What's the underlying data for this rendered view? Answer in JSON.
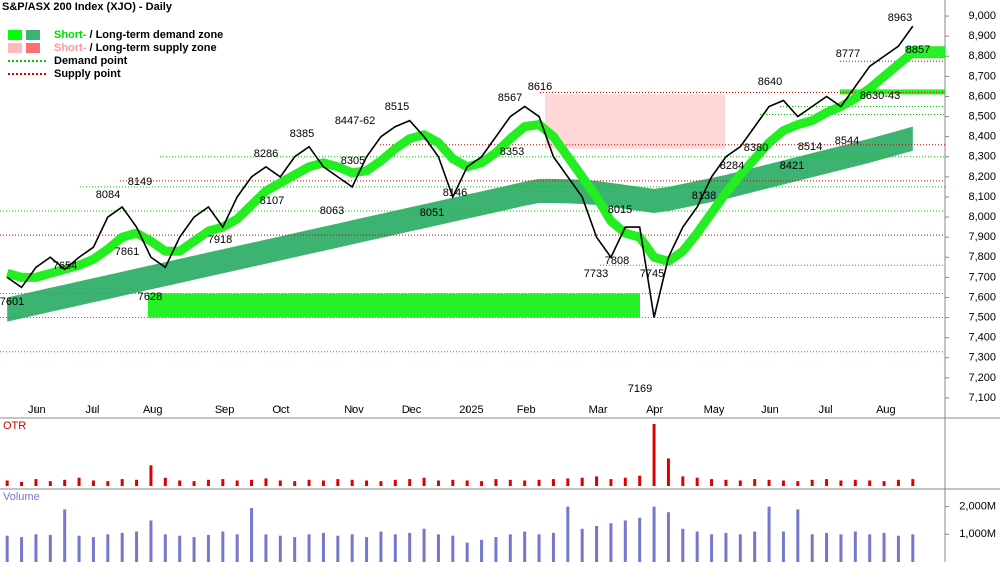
{
  "chart_data": [
    {
      "type": "line",
      "title": "S&P/ASX 200 Index (XJO) - Daily",
      "legend": [
        {
          "parts": [
            "Short-",
            " / ",
            "Long-term demand zone"
          ]
        },
        {
          "parts": [
            "Short-",
            " / ",
            "Long-term supply zone"
          ]
        },
        {
          "parts": [
            "Demand point"
          ]
        },
        {
          "parts": [
            "Supply point"
          ]
        }
      ],
      "categories": [
        null,
        null,
        "Jun",
        null,
        null,
        null,
        "Jul",
        null,
        null,
        null,
        "Aug",
        null,
        null,
        null,
        null,
        "Sep",
        null,
        null,
        null,
        "Oct",
        null,
        null,
        null,
        null,
        "Nov",
        null,
        null,
        null,
        "Dec",
        null,
        null,
        null,
        "2025",
        null,
        null,
        null,
        "Feb",
        null,
        null,
        null,
        null,
        "Mar",
        null,
        null,
        null,
        "Apr",
        null,
        null,
        null,
        "May",
        null,
        null,
        null,
        "Jun",
        null,
        null,
        null,
        "Jul",
        null,
        null,
        null,
        "Aug",
        null,
        null
      ],
      "values": [
        7700,
        7650,
        7750,
        7800,
        7740,
        7800,
        7850,
        8000,
        8050,
        7950,
        7800,
        7750,
        7900,
        8000,
        8050,
        7950,
        8100,
        8200,
        8250,
        8200,
        8300,
        8350,
        8250,
        8200,
        8150,
        8300,
        8400,
        8450,
        8480,
        8400,
        8300,
        8100,
        8250,
        8300,
        8400,
        8500,
        8550,
        8500,
        8300,
        8200,
        8100,
        7900,
        7800,
        7950,
        7950,
        7500,
        7800,
        7950,
        8050,
        8200,
        8300,
        8350,
        8450,
        8550,
        8580,
        8500,
        8550,
        8600,
        8550,
        8650,
        8750,
        8800,
        8850,
        8950
      ],
      "color": "#000000",
      "short_line": {
        "color": "#22ee22",
        "values": [
          7720,
          7700,
          7700,
          7720,
          7740,
          7760,
          7790,
          7840,
          7900,
          7920,
          7880,
          7830,
          7830,
          7880,
          7930,
          7950,
          7990,
          8060,
          8130,
          8170,
          8210,
          8250,
          8270,
          8250,
          8220,
          8230,
          8280,
          8340,
          8390,
          8410,
          8370,
          8290,
          8250,
          8270,
          8320,
          8390,
          8450,
          8460,
          8400,
          8300,
          8200,
          8100,
          7980,
          7920,
          7900,
          7800,
          7780,
          7830,
          7920,
          8020,
          8120,
          8210,
          8290,
          8370,
          8430,
          8460,
          8480,
          8520,
          8550,
          8590,
          8640,
          8700,
          8760,
          8820
        ]
      },
      "long_band": {
        "color": "#3cb371",
        "lower": [
          7480,
          7496,
          7512,
          7528,
          7544,
          7560,
          7576,
          7592,
          7608,
          7624,
          7640,
          7656,
          7672,
          7688,
          7704,
          7720,
          7736,
          7752,
          7768,
          7784,
          7800,
          7816,
          7832,
          7848,
          7864,
          7880,
          7896,
          7912,
          7928,
          7944,
          7960,
          7976,
          7992,
          8008,
          8024,
          8040,
          8056,
          8070,
          8070,
          8068,
          8065,
          8060,
          8050,
          8040,
          8030,
          8020,
          8030,
          8045,
          8060,
          8075,
          8090,
          8108,
          8126,
          8144,
          8162,
          8180,
          8198,
          8216,
          8234,
          8252,
          8270,
          8290,
          8310,
          8330
        ],
        "upper": [
          7600,
          7616,
          7632,
          7648,
          7664,
          7680,
          7696,
          7712,
          7728,
          7744,
          7760,
          7776,
          7792,
          7808,
          7824,
          7840,
          7856,
          7872,
          7888,
          7904,
          7920,
          7936,
          7952,
          7968,
          7984,
          8000,
          8016,
          8032,
          8048,
          8064,
          8080,
          8096,
          8112,
          8128,
          8144,
          8160,
          8176,
          8190,
          8190,
          8188,
          8185,
          8180,
          8170,
          8160,
          8150,
          8140,
          8150,
          8165,
          8180,
          8195,
          8210,
          8228,
          8246,
          8264,
          8282,
          8300,
          8318,
          8336,
          8354,
          8372,
          8390,
          8410,
          8430,
          8450
        ]
      },
      "zones": [
        {
          "low": 7500,
          "high": 7620,
          "color": "#00ee00"
        },
        {
          "low": 8790,
          "high": 8850,
          "color": "#00ee00"
        },
        {
          "low": 8610,
          "high": 8635,
          "color": "#00ee00"
        },
        {
          "low": 8340,
          "high": 8610,
          "color": "#ffd0d0"
        }
      ],
      "demand_points": [
        7330,
        7500,
        7620,
        7760,
        8030,
        8150,
        8300,
        8510,
        8550
      ],
      "supply_points": [
        7910,
        8180,
        8360,
        8620,
        8775
      ],
      "annotations": [
        "8963",
        "8857",
        "8777",
        "8640",
        "8630-43",
        "8616",
        "8567",
        "8515",
        "8447-62",
        "8385",
        "8305",
        "8353",
        "8286",
        "8149",
        "8084",
        "8107",
        "8063",
        "8146",
        "8051",
        "8380",
        "8284",
        "8421",
        "8514",
        "8544",
        "8138",
        "8015",
        "7918",
        "7861",
        "7808",
        "7745",
        "7733",
        "7654",
        "7628",
        "7601",
        "7169"
      ],
      "ylim": [
        7060,
        9060
      ],
      "yticks": [
        {
          "value": 7100,
          "label": "7,100"
        },
        {
          "value": 7200,
          "label": "7,200"
        },
        {
          "value": 7300,
          "label": "7,300"
        },
        {
          "value": 7400,
          "label": "7,400"
        },
        {
          "value": 7500,
          "label": "7,500"
        },
        {
          "value": 7600,
          "label": "7,600"
        },
        {
          "value": 7700,
          "label": "7,700"
        },
        {
          "value": 7800,
          "label": "7,800"
        },
        {
          "value": 7900,
          "label": "7,900"
        },
        {
          "value": 8000,
          "label": "8,000"
        },
        {
          "value": 8100,
          "label": "8,100"
        },
        {
          "value": 8200,
          "label": "8,200"
        },
        {
          "value": 8300,
          "label": "8,300"
        },
        {
          "value": 8400,
          "label": "8,400"
        },
        {
          "value": 8500,
          "label": "8,500"
        },
        {
          "value": 8600,
          "label": "8,600"
        },
        {
          "value": 8700,
          "label": "8,700"
        },
        {
          "value": 8800,
          "label": "8,800"
        },
        {
          "value": 8900,
          "label": "8,900"
        },
        {
          "value": 9000,
          "label": "9,000"
        }
      ]
    },
    {
      "type": "bar",
      "title": "OTR",
      "color": "#dd0000",
      "values": [
        8,
        6,
        10,
        7,
        9,
        12,
        8,
        7,
        10,
        9,
        30,
        12,
        8,
        7,
        9,
        10,
        8,
        9,
        11,
        8,
        7,
        9,
        8,
        10,
        9,
        8,
        7,
        9,
        10,
        12,
        8,
        9,
        8,
        7,
        10,
        9,
        8,
        9,
        10,
        11,
        12,
        14,
        10,
        12,
        15,
        90,
        40,
        14,
        12,
        10,
        9,
        8,
        10,
        9,
        8,
        7,
        9,
        10,
        8,
        9,
        8,
        7,
        9,
        10
      ]
    },
    {
      "type": "bar",
      "title": "Volume",
      "color": "#7777cc",
      "values": [
        950,
        900,
        1000,
        980,
        1900,
        950,
        900,
        1000,
        1050,
        1100,
        1500,
        1000,
        950,
        900,
        980,
        1100,
        1000,
        1950,
        1000,
        950,
        900,
        1000,
        1050,
        950,
        1000,
        900,
        1100,
        1000,
        1050,
        1200,
        1000,
        950,
        700,
        800,
        900,
        1000,
        1100,
        1000,
        1050,
        2000,
        1200,
        1300,
        1400,
        1500,
        1600,
        2000,
        1800,
        1200,
        1100,
        1000,
        1050,
        1000,
        1100,
        2000,
        1100,
        1900,
        1000,
        1050,
        1000,
        1100,
        1000,
        1050,
        950,
        1000
      ],
      "ylim": [
        0,
        2600
      ],
      "yticks": [
        {
          "value": 1000,
          "label": "1,000M"
        },
        {
          "value": 2000,
          "label": "2,000M"
        }
      ]
    }
  ]
}
